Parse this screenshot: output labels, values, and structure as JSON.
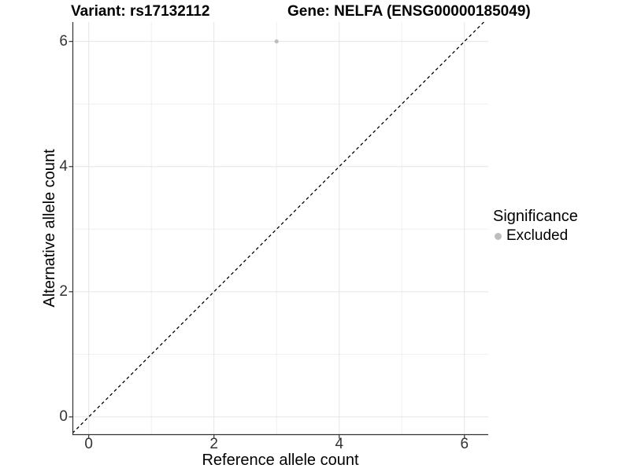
{
  "chart_data": {
    "type": "scatter",
    "title_left": "Variant: rs17132112",
    "title_right": "Gene: NELFA (ENSG00000185049)",
    "xlabel": "Reference allele count",
    "ylabel": "Alternative allele count",
    "xlim": [
      -0.26,
      6.38
    ],
    "ylim": [
      -0.29,
      6.31
    ],
    "x_ticks": [
      0,
      2,
      4,
      6
    ],
    "y_ticks": [
      0,
      2,
      4,
      6
    ],
    "x_minor_grid": [
      1,
      3,
      5
    ],
    "y_minor_grid": [
      1,
      3,
      5
    ],
    "grid": "on",
    "points": [
      {
        "x": 3,
        "y": 6,
        "significance": "Excluded"
      }
    ],
    "identity_line": {
      "style": "dashed",
      "color": "#000000",
      "slope": 1,
      "intercept": 0
    },
    "legend": {
      "title": "Significance",
      "position": "right",
      "entries": [
        {
          "label": "Excluded",
          "color": "#bebebe",
          "marker": "circle"
        }
      ]
    },
    "colors": {
      "point": "#bebebe",
      "grid_major": "#e5e5e5",
      "grid_minor": "#efefef",
      "axis_line": "#333333",
      "tick_text": "#333333",
      "title_text": "#000000"
    }
  }
}
